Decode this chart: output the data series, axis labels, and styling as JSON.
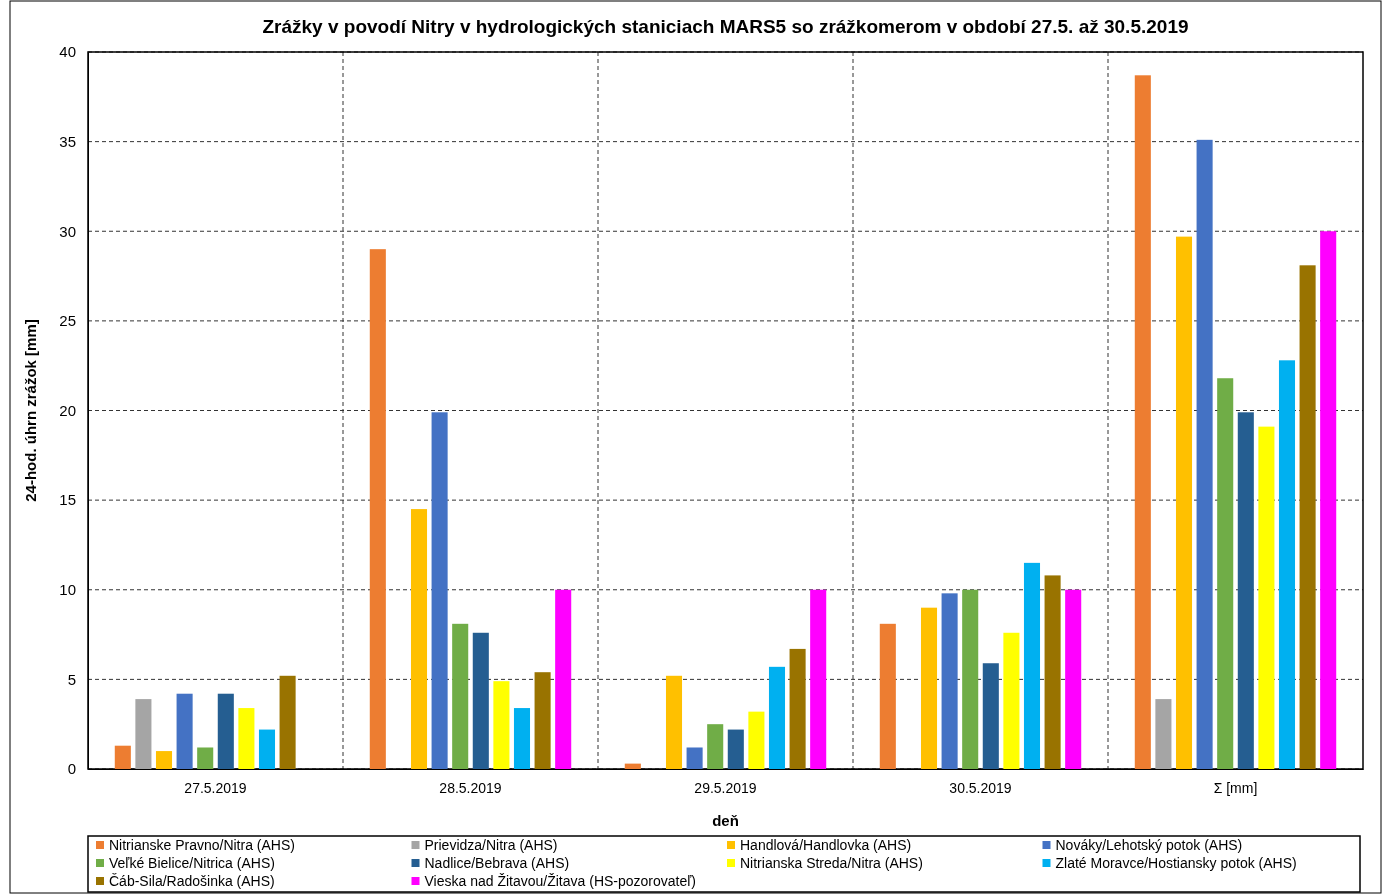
{
  "chart_data": {
    "type": "bar",
    "title": "Zrážky v povodí Nitry v hydrologických staniciach MARS5 so zrážkomerom v období 27.5. až 30.5.2019",
    "xlabel": "deň",
    "ylabel": "24-hod. úhrn zrážok [mm]",
    "categories": [
      "27.5.2019",
      "28.5.2019",
      "29.5.2019",
      "30.5.2019",
      "Σ [mm]"
    ],
    "ylim": [
      0,
      40
    ],
    "yticks": [
      0,
      5,
      10,
      15,
      20,
      25,
      30,
      35,
      40
    ],
    "grid": true,
    "legend": "bottom",
    "series": [
      {
        "name": "Nitrianske Pravno/Nitra (AHS)",
        "color": "#ed7d31",
        "values": [
          1.3,
          29.0,
          0.3,
          8.1,
          38.7
        ]
      },
      {
        "name": "Prievidza/Nitra (AHS)",
        "color": "#a5a5a5",
        "values": [
          3.9,
          null,
          null,
          null,
          3.9
        ]
      },
      {
        "name": "Handlová/Handlovka (AHS)",
        "color": "#ffc000",
        "values": [
          1.0,
          14.5,
          5.2,
          9.0,
          29.7
        ]
      },
      {
        "name": "Nováky/Lehotský potok (AHS)",
        "color": "#4472c4",
        "values": [
          4.2,
          19.9,
          1.2,
          9.8,
          35.1
        ]
      },
      {
        "name": "Veľké Bielice/Nitrica (AHS)",
        "color": "#70ad47",
        "values": [
          1.2,
          8.1,
          2.5,
          10.0,
          21.8
        ]
      },
      {
        "name": "Nadlice/Bebrava (AHS)",
        "color": "#255e91",
        "values": [
          4.2,
          7.6,
          2.2,
          5.9,
          19.9
        ]
      },
      {
        "name": "Nitrianska Streda/Nitra (AHS)",
        "color": "#ffff00",
        "values": [
          3.4,
          4.9,
          3.2,
          7.6,
          19.1
        ]
      },
      {
        "name": "Zlaté Moravce/Hostiansky potok (AHS)",
        "color": "#00b0f0",
        "values": [
          2.2,
          3.4,
          5.7,
          11.5,
          22.8
        ]
      },
      {
        "name": "Čáb-Sila/Radošinka (AHS)",
        "color": "#997300",
        "values": [
          5.2,
          5.4,
          6.7,
          10.8,
          28.1
        ]
      },
      {
        "name": "Vieska nad Žitavou/Žitava (HS-pozorovateľ)",
        "color": "#ff00ff",
        "values": [
          null,
          10.0,
          10.0,
          10.0,
          30.0
        ]
      }
    ]
  }
}
